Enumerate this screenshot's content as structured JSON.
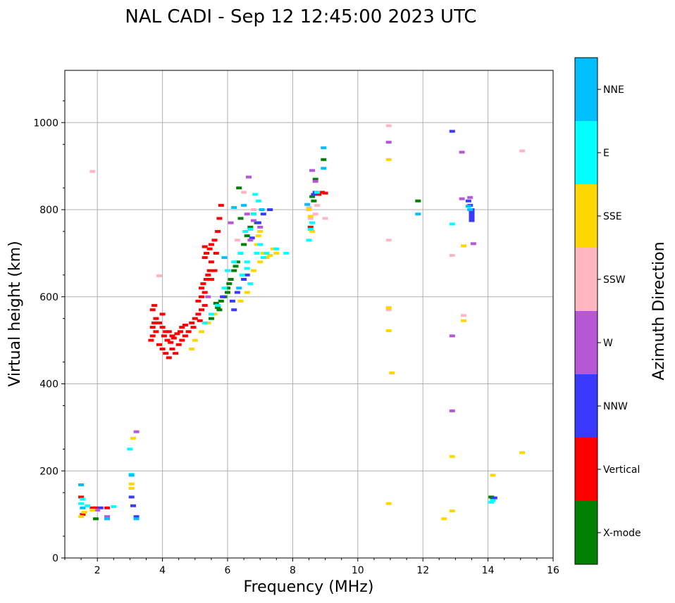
{
  "chart_data": {
    "type": "scatter",
    "title": "NAL CADI - Sep 12 12:45:00 2023 UTC",
    "xlabel": "Frequency (MHz)",
    "ylabel": "Virtual height (km)",
    "xlim": [
      1,
      16
    ],
    "ylim": [
      0,
      1120
    ],
    "x_ticks": [
      2,
      4,
      6,
      8,
      10,
      12,
      14,
      16
    ],
    "y_ticks": [
      0,
      200,
      400,
      600,
      800,
      1000
    ],
    "grid": true,
    "colorbar": {
      "title": "Azimuth Direction",
      "categories": [
        {
          "label": "X-mode",
          "color": "#008000"
        },
        {
          "label": "Vertical",
          "color": "#ff0000"
        },
        {
          "label": "NNW",
          "color": "#3a3aff"
        },
        {
          "label": "W",
          "color": "#b658d6"
        },
        {
          "label": "SSW",
          "color": "#ffb6c1"
        },
        {
          "label": "SSE",
          "color": "#ffd700"
        },
        {
          "label": "E",
          "color": "#00ffff"
        },
        {
          "label": "NNE",
          "color": "#00bfff"
        }
      ]
    },
    "series": [
      {
        "name": "X-mode",
        "points": [
          [
            5.6,
            560
          ],
          [
            5.7,
            575
          ],
          [
            5.8,
            590
          ],
          [
            5.9,
            600
          ],
          [
            6.0,
            610
          ],
          [
            6.05,
            630
          ],
          [
            5.75,
            570
          ],
          [
            6.1,
            640
          ],
          [
            6.2,
            660
          ],
          [
            6.3,
            680
          ],
          [
            6.4,
            700
          ],
          [
            6.5,
            720
          ],
          [
            6.6,
            740
          ],
          [
            6.7,
            760
          ],
          [
            6.4,
            780
          ],
          [
            6.35,
            850
          ],
          [
            6.8,
            790
          ],
          [
            6.9,
            770
          ],
          [
            8.65,
            820
          ],
          [
            8.7,
            870
          ],
          [
            8.95,
            915
          ],
          [
            11.85,
            820
          ],
          [
            14.15,
            135
          ],
          [
            14.1,
            140
          ],
          [
            1.95,
            90
          ],
          [
            5.5,
            550
          ],
          [
            5.65,
            585
          ],
          [
            6.0,
            620
          ],
          [
            6.25,
            670
          ],
          [
            8.6,
            830
          ]
        ]
      },
      {
        "name": "Vertical",
        "points": [
          [
            3.65,
            500
          ],
          [
            3.7,
            510
          ],
          [
            3.8,
            520
          ],
          [
            3.9,
            490
          ],
          [
            4.0,
            480
          ],
          [
            4.1,
            470
          ],
          [
            4.2,
            460
          ],
          [
            4.3,
            480
          ],
          [
            4.4,
            470
          ],
          [
            4.5,
            490
          ],
          [
            4.6,
            500
          ],
          [
            4.7,
            510
          ],
          [
            3.7,
            530
          ],
          [
            3.75,
            540
          ],
          [
            3.8,
            550
          ],
          [
            3.9,
            540
          ],
          [
            4.0,
            530
          ],
          [
            4.05,
            510
          ],
          [
            4.15,
            500
          ],
          [
            4.25,
            495
          ],
          [
            4.35,
            505
          ],
          [
            4.45,
            515
          ],
          [
            4.55,
            520
          ],
          [
            3.7,
            570
          ],
          [
            3.75,
            580
          ],
          [
            4.0,
            560
          ],
          [
            4.1,
            520
          ],
          [
            4.2,
            520
          ],
          [
            4.3,
            510
          ],
          [
            4.6,
            530
          ],
          [
            4.7,
            535
          ],
          [
            4.8,
            520
          ],
          [
            4.9,
            540
          ],
          [
            5.0,
            550
          ],
          [
            5.1,
            560
          ],
          [
            5.2,
            570
          ],
          [
            5.3,
            580
          ],
          [
            5.1,
            590
          ],
          [
            5.2,
            600
          ],
          [
            5.3,
            610
          ],
          [
            5.2,
            620
          ],
          [
            5.25,
            630
          ],
          [
            5.35,
            640
          ],
          [
            5.4,
            650
          ],
          [
            5.45,
            660
          ],
          [
            5.5,
            680
          ],
          [
            5.3,
            690
          ],
          [
            5.35,
            700
          ],
          [
            5.45,
            710
          ],
          [
            5.5,
            720
          ],
          [
            5.6,
            730
          ],
          [
            5.7,
            750
          ],
          [
            5.75,
            780
          ],
          [
            5.8,
            810
          ],
          [
            5.3,
            715
          ],
          [
            5.5,
            640
          ],
          [
            5.6,
            660
          ],
          [
            5.65,
            700
          ],
          [
            1.5,
            140
          ],
          [
            1.55,
            100
          ],
          [
            1.85,
            115
          ],
          [
            1.95,
            115
          ],
          [
            2.3,
            115
          ],
          [
            8.55,
            760
          ],
          [
            8.8,
            835
          ],
          [
            8.9,
            840
          ],
          [
            9.0,
            838
          ],
          [
            5.15,
            545
          ],
          [
            4.95,
            530
          ]
        ]
      },
      {
        "name": "NNW",
        "points": [
          [
            6.2,
            570
          ],
          [
            6.3,
            610
          ],
          [
            6.5,
            640
          ],
          [
            6.6,
            650
          ],
          [
            6.75,
            735
          ],
          [
            6.95,
            770
          ],
          [
            7.1,
            790
          ],
          [
            7.3,
            800
          ],
          [
            8.65,
            835
          ],
          [
            8.7,
            840
          ],
          [
            12.9,
            980
          ],
          [
            13.4,
            820
          ],
          [
            13.45,
            810
          ],
          [
            13.5,
            800
          ],
          [
            13.5,
            795
          ],
          [
            13.5,
            790
          ],
          [
            13.5,
            785
          ],
          [
            13.5,
            780
          ],
          [
            13.5,
            775
          ],
          [
            14.2,
            138
          ],
          [
            2.1,
            115
          ],
          [
            3.1,
            120
          ],
          [
            3.05,
            140
          ],
          [
            3.2,
            95
          ],
          [
            5.85,
            600
          ],
          [
            6.15,
            590
          ]
        ]
      },
      {
        "name": "W",
        "points": [
          [
            6.1,
            770
          ],
          [
            6.65,
            875
          ],
          [
            6.7,
            730
          ],
          [
            7.0,
            760
          ],
          [
            6.6,
            790
          ],
          [
            6.8,
            775
          ],
          [
            8.6,
            890
          ],
          [
            8.7,
            865
          ],
          [
            12.9,
            510
          ],
          [
            12.9,
            338
          ],
          [
            13.2,
            825
          ],
          [
            13.45,
            828
          ],
          [
            13.55,
            722
          ],
          [
            13.2,
            932
          ],
          [
            10.95,
            955
          ],
          [
            3.2,
            290
          ],
          [
            2.0,
            110
          ],
          [
            2.3,
            95
          ],
          [
            5.4,
            600
          ]
        ]
      },
      {
        "name": "SSW",
        "points": [
          [
            6.3,
            730
          ],
          [
            6.5,
            840
          ],
          [
            6.8,
            800
          ],
          [
            8.55,
            780
          ],
          [
            8.75,
            810
          ],
          [
            9.0,
            780
          ],
          [
            10.95,
            730
          ],
          [
            10.95,
            570
          ],
          [
            10.95,
            993
          ],
          [
            12.9,
            695
          ],
          [
            13.25,
            557
          ],
          [
            15.05,
            935
          ],
          [
            1.85,
            888
          ],
          [
            3.9,
            648
          ],
          [
            8.5,
            805
          ],
          [
            8.7,
            790
          ]
        ]
      },
      {
        "name": "SSE",
        "points": [
          [
            4.9,
            480
          ],
          [
            5.0,
            500
          ],
          [
            5.2,
            520
          ],
          [
            5.4,
            540
          ],
          [
            5.6,
            560
          ],
          [
            6.4,
            590
          ],
          [
            6.6,
            610
          ],
          [
            6.8,
            660
          ],
          [
            7.0,
            680
          ],
          [
            7.2,
            690
          ],
          [
            7.3,
            695
          ],
          [
            7.5,
            700
          ],
          [
            7.4,
            710
          ],
          [
            6.9,
            720
          ],
          [
            7.0,
            750
          ],
          [
            8.5,
            800
          ],
          [
            8.6,
            750
          ],
          [
            8.55,
            785
          ],
          [
            10.95,
            575
          ],
          [
            10.95,
            522
          ],
          [
            11.05,
            425
          ],
          [
            10.95,
            915
          ],
          [
            10.95,
            125
          ],
          [
            12.65,
            90
          ],
          [
            12.9,
            108
          ],
          [
            12.9,
            233
          ],
          [
            13.25,
            545
          ],
          [
            13.25,
            717
          ],
          [
            14.15,
            190
          ],
          [
            15.05,
            242
          ],
          [
            3.05,
            170
          ],
          [
            3.05,
            160
          ],
          [
            3.1,
            275
          ],
          [
            1.5,
            95
          ],
          [
            1.6,
            105
          ],
          [
            1.85,
            110
          ],
          [
            6.95,
            740
          ],
          [
            7.1,
            700
          ]
        ]
      },
      {
        "name": "E",
        "points": [
          [
            5.3,
            540
          ],
          [
            5.5,
            560
          ],
          [
            5.7,
            580
          ],
          [
            5.9,
            620
          ],
          [
            6.0,
            660
          ],
          [
            6.2,
            680
          ],
          [
            6.4,
            700
          ],
          [
            6.6,
            680
          ],
          [
            6.7,
            630
          ],
          [
            6.9,
            700
          ],
          [
            7.0,
            720
          ],
          [
            7.1,
            690
          ],
          [
            7.2,
            700
          ],
          [
            7.5,
            710
          ],
          [
            7.8,
            700
          ],
          [
            6.55,
            750
          ],
          [
            6.7,
            755
          ],
          [
            6.8,
            790
          ],
          [
            6.95,
            820
          ],
          [
            6.85,
            835
          ],
          [
            8.5,
            730
          ],
          [
            8.55,
            755
          ],
          [
            8.6,
            770
          ],
          [
            8.75,
            840
          ],
          [
            12.9,
            767
          ],
          [
            14.1,
            128
          ],
          [
            14.15,
            132
          ],
          [
            3.0,
            250
          ],
          [
            3.05,
            192
          ],
          [
            1.5,
            125
          ],
          [
            1.55,
            135
          ],
          [
            1.7,
            120
          ],
          [
            2.5,
            118
          ],
          [
            6.45,
            650
          ],
          [
            6.6,
            665
          ]
        ]
      },
      {
        "name": "NNE",
        "points": [
          [
            1.5,
            168
          ],
          [
            1.55,
            115
          ],
          [
            2.3,
            90
          ],
          [
            3.2,
            90
          ],
          [
            3.05,
            190
          ],
          [
            6.2,
            805
          ],
          [
            6.5,
            810
          ],
          [
            7.05,
            800
          ],
          [
            8.45,
            812
          ],
          [
            8.95,
            895
          ],
          [
            8.95,
            942
          ],
          [
            11.85,
            790
          ],
          [
            13.4,
            808
          ],
          [
            13.45,
            800
          ],
          [
            5.9,
            690
          ],
          [
            6.35,
            620
          ]
        ]
      }
    ]
  }
}
